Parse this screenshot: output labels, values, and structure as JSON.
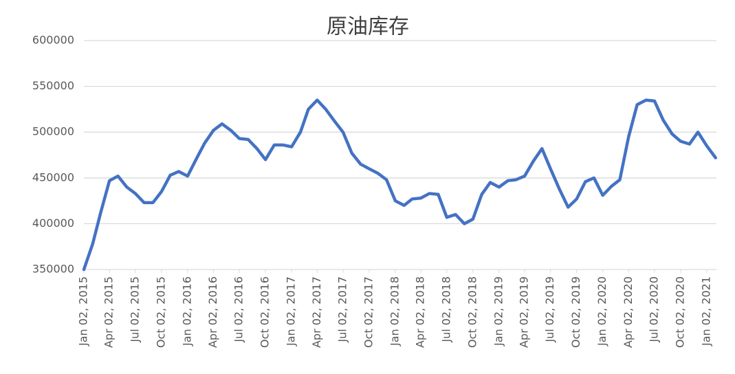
{
  "chart_data": {
    "type": "line",
    "title": "原油库存",
    "x": [
      "Jan 02, 2015",
      "Feb 02, 2015",
      "Mar 02, 2015",
      "Apr 02, 2015",
      "May 02, 2015",
      "Jun 02, 2015",
      "Jul 02, 2015",
      "Aug 02, 2015",
      "Sep 02, 2015",
      "Oct 02, 2015",
      "Nov 02, 2015",
      "Dec 02, 2015",
      "Jan 02, 2016",
      "Feb 02, 2016",
      "Mar 02, 2016",
      "Apr 02, 2016",
      "May 02, 2016",
      "Jun 02, 2016",
      "Jul 02, 2016",
      "Aug 02, 2016",
      "Sep 02, 2016",
      "Oct 02, 2016",
      "Nov 02, 2016",
      "Dec 02, 2016",
      "Jan 02, 2017",
      "Feb 02, 2017",
      "Mar 02, 2017",
      "Apr 02, 2017",
      "May 02, 2017",
      "Jun 02, 2017",
      "Jul 02, 2017",
      "Aug 02, 2017",
      "Sep 02, 2017",
      "Oct 02, 2017",
      "Nov 02, 2017",
      "Dec 02, 2017",
      "Jan 02, 2018",
      "Feb 02, 2018",
      "Mar 02, 2018",
      "Apr 02, 2018",
      "May 02, 2018",
      "Jun 02, 2018",
      "Jul 02, 2018",
      "Aug 02, 2018",
      "Sep 02, 2018",
      "Oct 02, 2018",
      "Nov 02, 2018",
      "Dec 02, 2018",
      "Jan 02, 2019",
      "Feb 02, 2019",
      "Mar 02, 2019",
      "Apr 02, 2019",
      "May 02, 2019",
      "Jun 02, 2019",
      "Jul 02, 2019",
      "Aug 02, 2019",
      "Sep 02, 2019",
      "Oct 02, 2019",
      "Nov 02, 2019",
      "Dec 02, 2019",
      "Jan 02, 2020",
      "Feb 02, 2020",
      "Mar 02, 2020",
      "Apr 02, 2020",
      "May 02, 2020",
      "Jun 02, 2020",
      "Jul 02, 2020",
      "Aug 02, 2020",
      "Sep 02, 2020",
      "Oct 02, 2020",
      "Nov 02, 2020",
      "Dec 02, 2020",
      "Jan 02, 2021",
      "Feb 02, 2021"
    ],
    "series": [
      {
        "color": "#4472c4",
        "values": [
          350000,
          378000,
          412000,
          447000,
          452000,
          440000,
          433000,
          423000,
          423000,
          435000,
          453000,
          457000,
          452000,
          471000,
          488000,
          502000,
          509000,
          502000,
          493000,
          492000,
          482000,
          470000,
          486000,
          486000,
          484000,
          500000,
          525000,
          535000,
          525000,
          512000,
          500000,
          477000,
          465000,
          460000,
          455000,
          448000,
          425000,
          420000,
          427000,
          428000,
          433000,
          432000,
          407000,
          410000,
          400000,
          405000,
          432000,
          445000,
          440000,
          447000,
          448000,
          452000,
          468000,
          482000,
          460000,
          438000,
          418000,
          427000,
          446000,
          450000,
          431000,
          441000,
          448000,
          495000,
          530000,
          535000,
          534000,
          513000,
          498000,
          490000,
          487000,
          500000,
          485000,
          472000
        ]
      }
    ],
    "xlim": [
      "Jan 02, 2015",
      "Feb 05, 2021"
    ],
    "xticks": [
      "Jan 02, 2015",
      "Apr 02, 2015",
      "Jul 02, 2015",
      "Oct 02, 2015",
      "Jan 02, 2016",
      "Apr 02, 2016",
      "Jul 02, 2016",
      "Oct 02, 2016",
      "Jan 02, 2017",
      "Apr 02, 2017",
      "Jul 02, 2017",
      "Oct 02, 2017",
      "Jan 02, 2018",
      "Apr 02, 2018",
      "Jul 02, 2018",
      "Oct 02, 2018",
      "Jan 02, 2019",
      "Apr 02, 2019",
      "Jul 02, 2019",
      "Oct 02, 2019",
      "Jan 02, 2020",
      "Apr 02, 2020",
      "Jul 02, 2020",
      "Oct 02, 2020",
      "Jan 02, 2021"
    ],
    "ylim": [
      350000,
      600000
    ],
    "yticks": [
      350000,
      400000,
      450000,
      500000,
      550000,
      600000
    ],
    "grid": true
  }
}
